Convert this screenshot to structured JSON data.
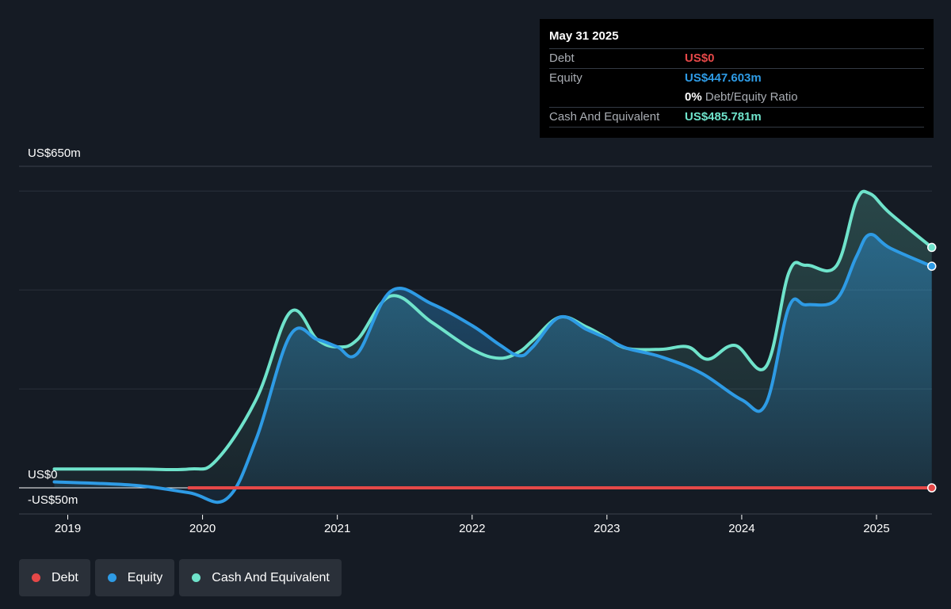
{
  "tooltip": {
    "date": "May 31 2025",
    "debt_label": "Debt",
    "debt_value": "US$0",
    "equity_label": "Equity",
    "equity_value": "US$447.603m",
    "ratio_pct": "0%",
    "ratio_label": "Debt/Equity Ratio",
    "cash_label": "Cash And Equivalent",
    "cash_value": "US$485.781m"
  },
  "legend": [
    {
      "label": "Debt",
      "color": "#e64848"
    },
    {
      "label": "Equity",
      "color": "#2e9be5"
    },
    {
      "label": "Cash And Equivalent",
      "color": "#6fe3cb"
    }
  ],
  "colors": {
    "debt": "#e64848",
    "equity": "#2e9be5",
    "cash": "#6fe3cb",
    "background": "#151b24"
  },
  "chart_data": {
    "type": "area",
    "y_tick_labels": [
      "US$650m",
      "US$0",
      "-US$50m"
    ],
    "y_ticks": [
      650,
      0,
      -50
    ],
    "ylim": [
      -50,
      650
    ],
    "x_tick_labels": [
      "2019",
      "2020",
      "2021",
      "2022",
      "2023",
      "2024",
      "2025"
    ],
    "x_ticks": [
      2019.0,
      2020.0,
      2021.0,
      2022.0,
      2023.0,
      2024.0,
      2025.0
    ],
    "xlim": [
      2018.6,
      2025.42
    ],
    "grid": true,
    "legend_position": "bottom-left",
    "series": [
      {
        "name": "Debt",
        "color": "#e64848",
        "x": [
          2019.9,
          2025.41
        ],
        "values": [
          0,
          0
        ]
      },
      {
        "name": "Equity",
        "color": "#2e9be5",
        "x": [
          2018.9,
          2019.5,
          2019.9,
          2020.18,
          2020.4,
          2020.65,
          2020.85,
          2021.0,
          2021.15,
          2021.4,
          2021.7,
          2022.0,
          2022.2,
          2022.35,
          2022.45,
          2022.65,
          2022.85,
          2023.0,
          2023.15,
          2023.4,
          2023.7,
          2024.0,
          2024.18,
          2024.35,
          2024.48,
          2024.7,
          2024.85,
          2024.95,
          2025.1,
          2025.41
        ],
        "values": [
          12,
          5,
          -10,
          -22,
          100,
          308,
          300,
          285,
          272,
          398,
          372,
          328,
          290,
          267,
          285,
          345,
          320,
          302,
          282,
          265,
          232,
          178,
          170,
          365,
          370,
          380,
          467,
          512,
          485,
          448
        ]
      },
      {
        "name": "Cash And Equivalent",
        "color": "#6fe3cb",
        "x": [
          2018.9,
          2019.5,
          2019.9,
          2020.1,
          2020.4,
          2020.65,
          2020.85,
          2021.0,
          2021.15,
          2021.4,
          2021.7,
          2022.0,
          2022.2,
          2022.35,
          2022.45,
          2022.65,
          2022.85,
          2023.0,
          2023.15,
          2023.4,
          2023.6,
          2023.75,
          2023.95,
          2024.18,
          2024.35,
          2024.48,
          2024.7,
          2024.85,
          2024.95,
          2025.1,
          2025.41
        ],
        "values": [
          38,
          38,
          38,
          55,
          180,
          355,
          300,
          285,
          300,
          388,
          335,
          280,
          262,
          275,
          298,
          345,
          325,
          303,
          282,
          280,
          285,
          260,
          288,
          245,
          435,
          450,
          448,
          580,
          595,
          555,
          486
        ]
      }
    ]
  }
}
